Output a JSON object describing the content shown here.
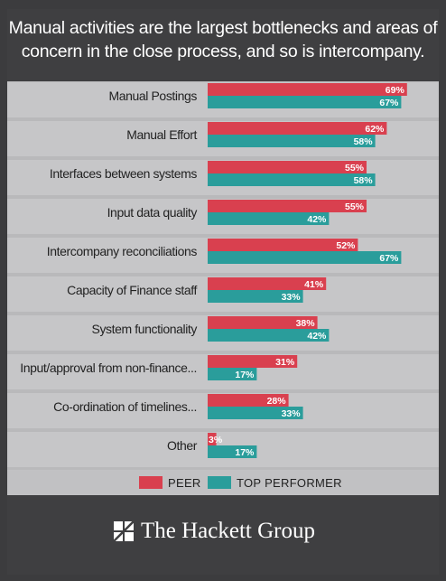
{
  "title": "Manual activities are the largest bottlenecks and areas of concern in the close process, and so is intercompany.",
  "colors": {
    "peer": "#d9404f",
    "top_performer": "#2a9d9b"
  },
  "legend": {
    "peer": "PEER",
    "top_performer": "TOP PERFORMER"
  },
  "footer": {
    "brand": "The Hackett Group"
  },
  "chart_data": {
    "type": "bar",
    "orientation": "horizontal",
    "categories": [
      "Manual Postings",
      "Manual Effort",
      "Interfaces between systems",
      "Input data quality",
      "Intercompany reconciliations",
      "Capacity of Finance staff",
      "System functionality",
      "Input/approval from non-finance...",
      "Co-ordination of timelines...",
      "Other"
    ],
    "series": [
      {
        "name": "PEER",
        "values": [
          69,
          62,
          55,
          55,
          52,
          41,
          38,
          31,
          28,
          3
        ]
      },
      {
        "name": "TOP PERFORMER",
        "values": [
          67,
          58,
          58,
          42,
          67,
          33,
          42,
          17,
          33,
          17
        ]
      }
    ],
    "value_suffix": "%",
    "xlim": [
      0,
      100
    ],
    "legend_position": "bottom",
    "grid": false
  }
}
